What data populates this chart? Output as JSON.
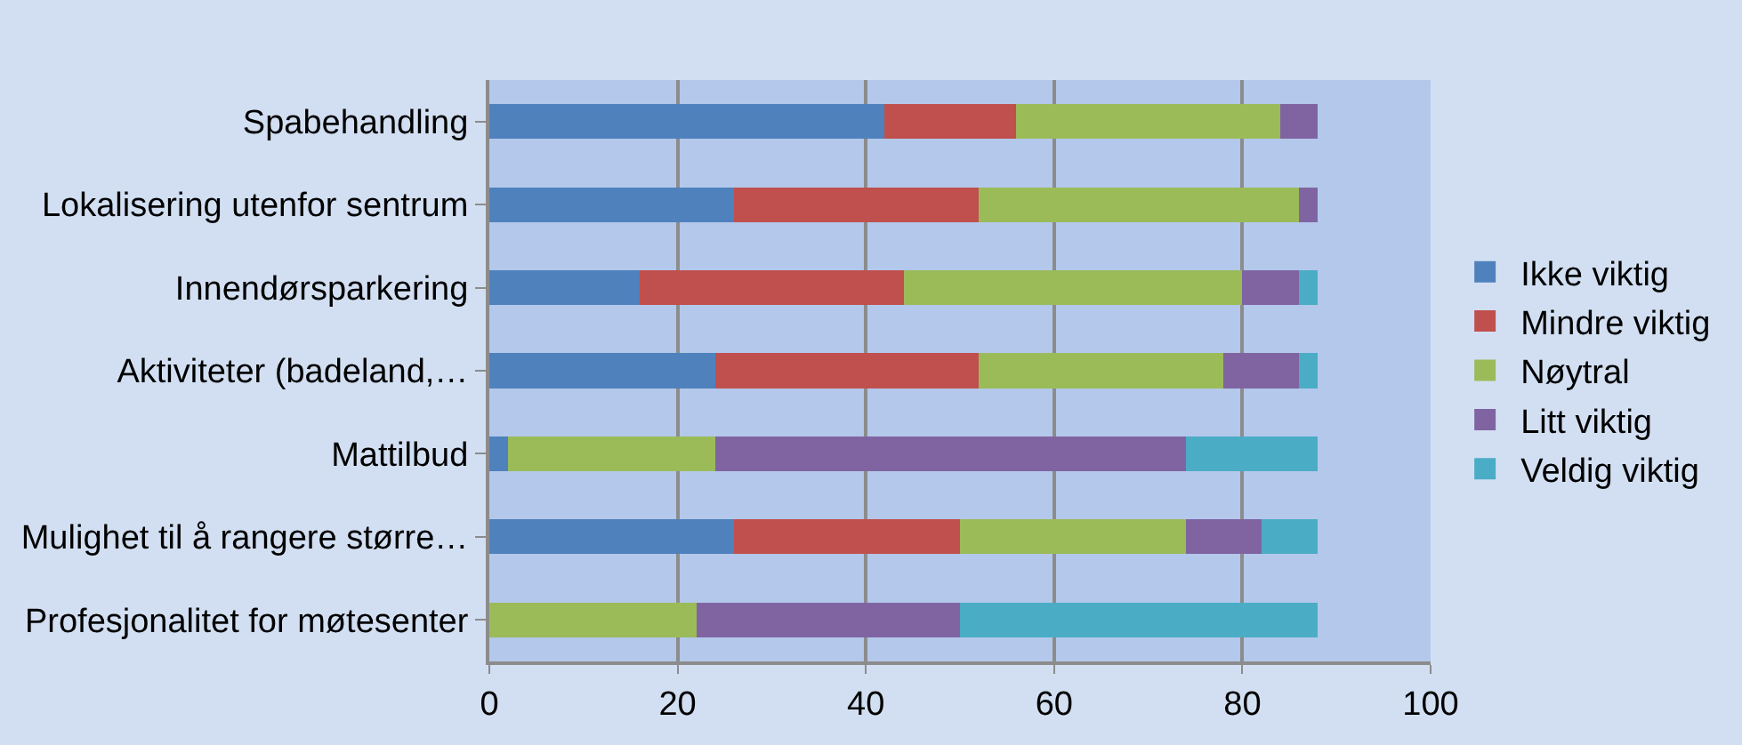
{
  "chart_data": {
    "type": "bar",
    "orientation": "horizontal",
    "stacked": true,
    "categories": [
      "Spabehandling",
      "Lokalisering utenfor sentrum",
      "Innendørsparkering",
      "Aktiviteter (badeland,…",
      "Mattilbud",
      "Mulighet til å rangere større…",
      "Profesjonalitet for møtesenter"
    ],
    "series": [
      {
        "name": "Ikke viktig",
        "color": "#4f81bd",
        "values": [
          42,
          26,
          16,
          24,
          2,
          26,
          0
        ]
      },
      {
        "name": "Mindre viktig",
        "color": "#c0504d",
        "values": [
          14,
          26,
          28,
          28,
          0,
          24,
          0
        ]
      },
      {
        "name": "Nøytral",
        "color": "#9bbb59",
        "values": [
          28,
          34,
          36,
          26,
          22,
          24,
          22
        ]
      },
      {
        "name": "Litt viktig",
        "color": "#8064a2",
        "values": [
          4,
          2,
          6,
          8,
          50,
          8,
          28
        ]
      },
      {
        "name": "Veldig viktig",
        "color": "#4bacc6",
        "values": [
          0,
          0,
          2,
          2,
          14,
          6,
          38
        ]
      }
    ],
    "xlim": [
      0,
      100
    ],
    "xticks": [
      0,
      20,
      40,
      60,
      80,
      100
    ],
    "grid": "x",
    "legend": "right"
  }
}
